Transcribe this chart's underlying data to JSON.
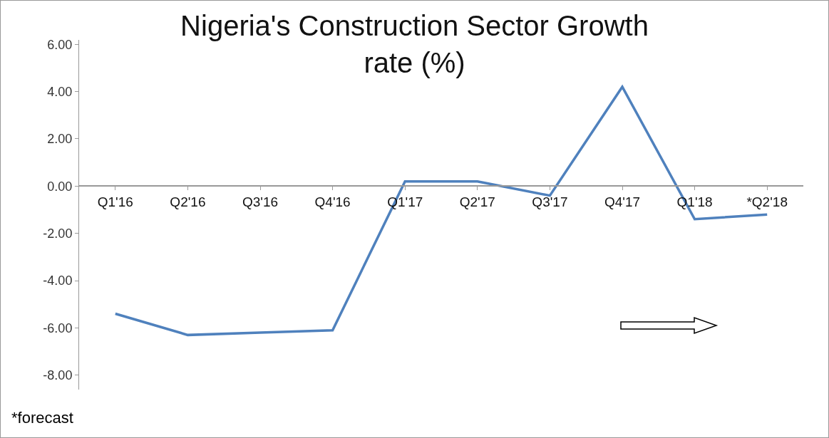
{
  "chart_data": {
    "type": "line",
    "title": "Nigeria's Construction Sector Growth\nrate (%)",
    "categories": [
      "Q1'16",
      "Q2'16",
      "Q3'16",
      "Q4'16",
      "Q1'17",
      "Q2'17",
      "Q3'17",
      "Q4'17",
      "Q1'18",
      "*Q2'18"
    ],
    "series": [
      {
        "color": "#4f81bd",
        "values": [
          -5.4,
          -6.3,
          -6.2,
          -6.1,
          0.2,
          0.2,
          -0.4,
          4.2,
          -1.4,
          -1.2
        ]
      }
    ],
    "ylim": [
      -8.6,
      6.2
    ],
    "yticks": [
      {
        "value": -8,
        "label": "-8.00"
      },
      {
        "value": -6,
        "label": "-6.00"
      },
      {
        "value": -4,
        "label": "-4.00"
      },
      {
        "value": -2,
        "label": "-2.00"
      },
      {
        "value": 0,
        "label": "0.00"
      },
      {
        "value": 2,
        "label": "2.00"
      },
      {
        "value": 4,
        "label": "4.00"
      },
      {
        "value": 6,
        "label": "6.00"
      }
    ],
    "grid": false,
    "marker": "none",
    "line_style": "solid",
    "annotations": [
      "*forecast"
    ]
  }
}
